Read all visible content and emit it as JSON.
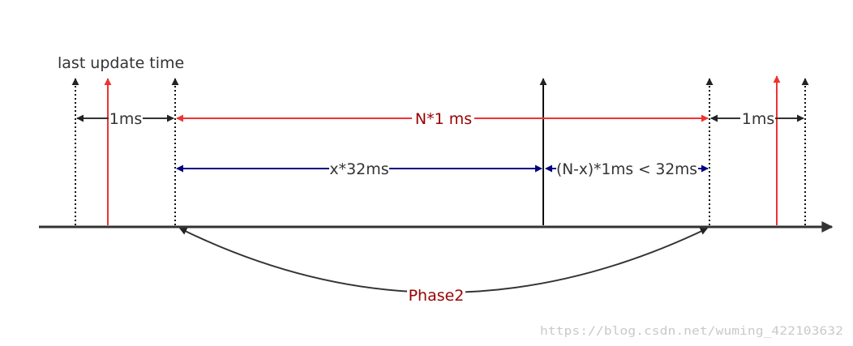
{
  "labels": {
    "last_update_time": "last update time",
    "one_ms_left": "1ms",
    "n_ms": "N*1 ms",
    "one_ms_right": "1ms",
    "x_32ms": "x*32ms",
    "remainder": "(N-x)*1ms < 32ms",
    "phase2": "Phase2"
  },
  "watermark": "https://blog.csdn.net/wuming_422103632",
  "colors": {
    "timeline": "#333333",
    "red": "#ee3333",
    "dark_red": "#990000",
    "navy": "#00007f",
    "text": "#333333"
  }
}
